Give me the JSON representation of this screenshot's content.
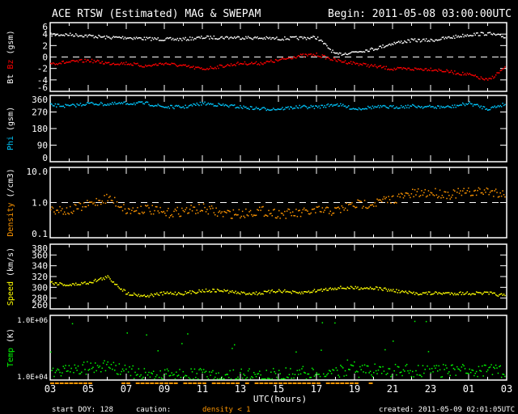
{
  "title": "ACE RTSW (Estimated) MAG & SWEPAM",
  "begin": "Begin: 2011-05-08 03:00:00UTC",
  "footer": {
    "start_doy": "start DOY: 128",
    "caution": "caution:",
    "density_note": "density < 1",
    "created": "created: 2011-05-09 02:01:05UTC"
  },
  "colors": {
    "bt": "#ffffff",
    "bz": "#ff0000",
    "phi": "#00c8ff",
    "density": "#ff9600",
    "speed": "#ffff00",
    "temp": "#00ff00"
  },
  "chart_data": {
    "type": "scatter",
    "xlabel": "UTC(hours)",
    "x_ticks": [
      "03",
      "05",
      "07",
      "09",
      "11",
      "13",
      "15",
      "17",
      "19",
      "21",
      "23",
      "01",
      "03"
    ],
    "x_hours": [
      0,
      1,
      2,
      3,
      4,
      5,
      6,
      7,
      8,
      9,
      10,
      11,
      12,
      13,
      14,
      15,
      16,
      17,
      18,
      19,
      20,
      21,
      22,
      23,
      24
    ],
    "panels": [
      {
        "ylabel_parts": [
          "Bt",
          " Bz",
          " (gsm)"
        ],
        "ylim": [
          -6,
          6
        ],
        "scale": "linear",
        "ticks": [
          "6",
          "4",
          "2",
          "0",
          "-2",
          "-4",
          "-6"
        ],
        "tick_values": [
          6,
          4,
          2,
          0,
          -2,
          -4,
          -6
        ],
        "dashed": 0,
        "series": [
          {
            "name": "Bt",
            "color": "#ffffff",
            "values": [
              4,
              4,
              3.8,
              3.5,
              3.5,
              3.3,
              3.2,
              3.2,
              3.5,
              3.5,
              3.5,
              3.4,
              3.3,
              3.4,
              3.5,
              0.5,
              1,
              1.5,
              2.5,
              3,
              3,
              3.5,
              4,
              4.2,
              3.5
            ]
          },
          {
            "name": "Bz",
            "color": "#ff0000",
            "values": [
              -1,
              -0.8,
              -0.5,
              -1,
              -1,
              -1.5,
              -1,
              -1.5,
              -2,
              -1.5,
              -1,
              -1,
              -0.5,
              0.3,
              0.5,
              -0.5,
              -1,
              -1.5,
              -2,
              -2,
              -2,
              -2.5,
              -3,
              -4,
              -1.5
            ]
          }
        ]
      },
      {
        "ylabel_parts": [
          "Phi",
          " (gsm)"
        ],
        "ylim": [
          0,
          360
        ],
        "scale": "linear",
        "ticks": [
          "360",
          "270",
          "180",
          "90",
          "0"
        ],
        "tick_values": [
          360,
          270,
          180,
          90,
          0
        ],
        "series": [
          {
            "name": "Phi",
            "color": "#00c8ff",
            "values": [
              310,
              305,
              320,
              315,
              320,
              320,
              300,
              300,
              320,
              310,
              300,
              290,
              290,
              300,
              300,
              315,
              290,
              300,
              300,
              305,
              300,
              300,
              320,
              290,
              320
            ]
          }
        ]
      },
      {
        "ylabel_parts": [
          "Density",
          " (/cm3)"
        ],
        "ylim": [
          0.1,
          10
        ],
        "scale": "log",
        "ticks": [
          "10.0",
          "1.0",
          "0.1"
        ],
        "tick_values": [
          10,
          1,
          0.1
        ],
        "dashed": 1,
        "series": [
          {
            "name": "Density",
            "color": "#ff9600",
            "values": [
              0.7,
              0.6,
              0.9,
              1.4,
              0.6,
              0.7,
              0.5,
              0.6,
              0.7,
              0.5,
              0.5,
              0.6,
              0.5,
              0.5,
              0.6,
              0.6,
              0.9,
              1.0,
              1.3,
              1.8,
              2.0,
              1.8,
              2.0,
              2.2,
              1.8
            ]
          }
        ]
      },
      {
        "ylabel_parts": [
          "Speed",
          " (km/s)"
        ],
        "ylim": [
          260,
          380
        ],
        "scale": "linear",
        "ticks": [
          "380",
          "360",
          "340",
          "320",
          "300",
          "280",
          "260"
        ],
        "tick_values": [
          380,
          360,
          340,
          320,
          300,
          280,
          260
        ],
        "series": [
          {
            "name": "Speed",
            "color": "#ffff00",
            "values": [
              310,
              305,
              310,
              320,
              290,
              285,
              290,
              290,
              295,
              295,
              290,
              290,
              295,
              290,
              295,
              300,
              300,
              300,
              295,
              290,
              290,
              290,
              290,
              290,
              285
            ]
          }
        ]
      },
      {
        "ylabel_parts": [
          "Temp",
          " (K)"
        ],
        "ylim": [
          10000,
          1000000
        ],
        "scale": "log",
        "ticks": [
          "1.0E+06",
          "1.0E+04"
        ],
        "tick_values": [
          1000000,
          10000
        ],
        "series": [
          {
            "name": "Temp",
            "color": "#00ff00",
            "values": [
              20000,
              20000,
              25000,
              30000,
              20000,
              15000,
              15000,
              15000,
              15000,
              15000,
              15000,
              15000,
              15000,
              18000,
              15000,
              20000,
              20000,
              20000,
              20000,
              20000,
              20000,
              20000,
              20000,
              20000,
              20000
            ]
          }
        ]
      }
    ]
  }
}
